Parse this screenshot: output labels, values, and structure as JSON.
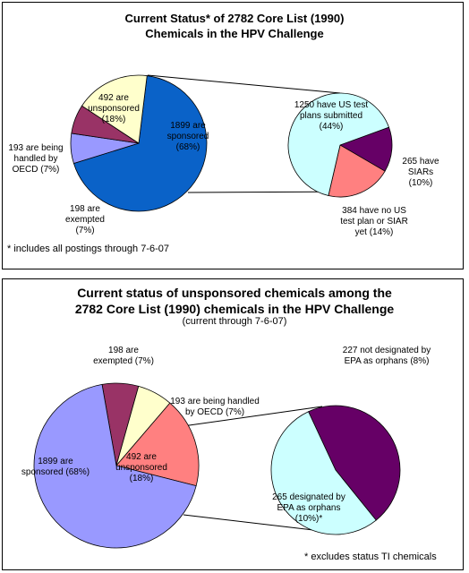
{
  "chart_data": [
    {
      "type": "pie-of-pie",
      "title": "Current Status* of 2782 Core List (1990) Chemicals in the HPV Challenge",
      "footnote": "* includes all postings through 7-6-07",
      "main": {
        "values": [
          1899,
          198,
          193,
          492
        ],
        "value_labels": [
          "1899 are sponsored (68%)",
          "198 are exempted (7%)",
          "193 are being handled by OECD (7%)",
          "492 are unsponsored (18%)"
        ],
        "colors": [
          "#0a62c8",
          "#9999ff",
          "#993366",
          "#ffffcc"
        ]
      },
      "secondary": {
        "values": [
          265,
          384,
          1250
        ],
        "value_labels": [
          "265 have SIARs (10%)",
          "384 have no US test plan or SIAR yet (14%)",
          "1250 have US test plans submitted (44%)"
        ],
        "colors": [
          "#660066",
          "#ff8080",
          "#ccffff"
        ]
      }
    },
    {
      "type": "pie-of-pie",
      "title": "Current status of unsponsored chemicals among the 2782 Core List (1990) chemicals in the HPV Challenge",
      "subtitle": "(current through 7-6-07)",
      "footnote": "* excludes status TI chemicals",
      "main": {
        "values": [
          198,
          193,
          492,
          1899
        ],
        "value_labels": [
          "198 are exempted (7%)",
          "193 are being handled by OECD (7%)",
          "492 are unsponsored (18%)",
          "1899 are sponsored (68%)"
        ],
        "colors": [
          "#993366",
          "#ffffcc",
          "#ff8080",
          "#9999ff"
        ]
      },
      "secondary": {
        "values": [
          227,
          265
        ],
        "value_labels": [
          "227 not designated by EPA as orphans (8%)",
          "265 designated by EPA as orphans (10%)*"
        ],
        "colors": [
          "#660066",
          "#ccffff"
        ]
      }
    }
  ]
}
